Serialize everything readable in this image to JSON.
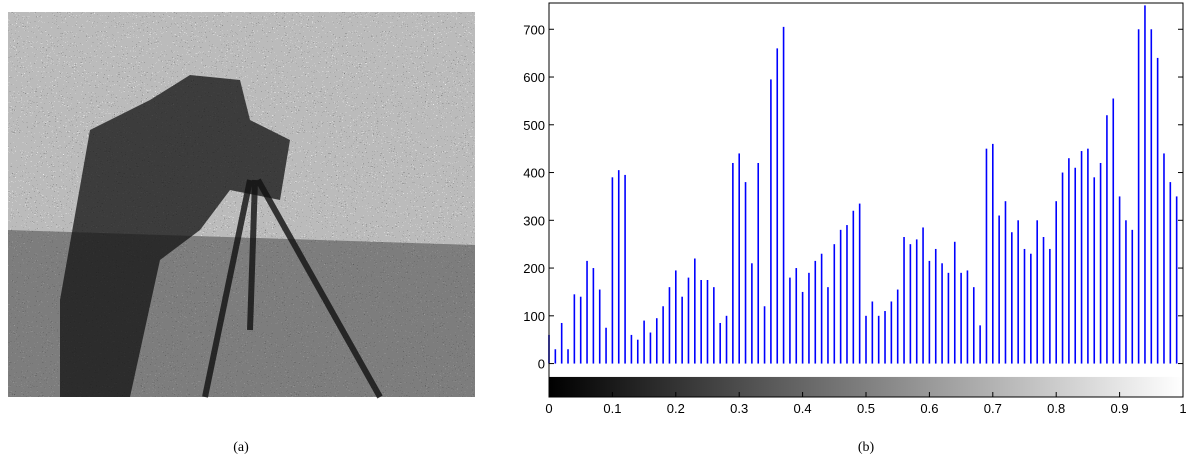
{
  "chart_data": {
    "type": "bar",
    "captions": [
      "(a)",
      "(b)"
    ],
    "x": [
      0.0,
      0.01,
      0.02,
      0.03,
      0.04,
      0.05,
      0.06,
      0.07,
      0.08,
      0.09,
      0.1,
      0.11,
      0.12,
      0.13,
      0.14,
      0.15,
      0.16,
      0.17,
      0.18,
      0.19,
      0.2,
      0.21,
      0.22,
      0.23,
      0.24,
      0.25,
      0.26,
      0.27,
      0.28,
      0.29,
      0.3,
      0.31,
      0.32,
      0.33,
      0.34,
      0.35,
      0.36,
      0.37,
      0.38,
      0.39,
      0.4,
      0.41,
      0.42,
      0.43,
      0.44,
      0.45,
      0.46,
      0.47,
      0.48,
      0.49,
      0.5,
      0.51,
      0.52,
      0.53,
      0.54,
      0.55,
      0.56,
      0.57,
      0.58,
      0.59,
      0.6,
      0.61,
      0.62,
      0.63,
      0.64,
      0.65,
      0.66,
      0.67,
      0.68,
      0.69,
      0.7,
      0.71,
      0.72,
      0.73,
      0.74,
      0.75,
      0.76,
      0.77,
      0.78,
      0.79,
      0.8,
      0.81,
      0.82,
      0.83,
      0.84,
      0.85,
      0.86,
      0.87,
      0.88,
      0.89,
      0.9,
      0.91,
      0.92,
      0.93,
      0.94,
      0.95,
      0.96,
      0.97,
      0.98,
      0.99
    ],
    "values": [
      60,
      30,
      85,
      30,
      145,
      140,
      215,
      200,
      155,
      75,
      390,
      405,
      395,
      60,
      50,
      90,
      65,
      95,
      120,
      160,
      195,
      140,
      180,
      220,
      175,
      175,
      160,
      85,
      100,
      420,
      440,
      380,
      210,
      420,
      120,
      595,
      660,
      705,
      180,
      200,
      150,
      190,
      215,
      230,
      160,
      250,
      280,
      290,
      320,
      335,
      100,
      130,
      100,
      110,
      130,
      155,
      265,
      250,
      260,
      285,
      215,
      240,
      210,
      190,
      255,
      190,
      195,
      160,
      80,
      450,
      460,
      310,
      340,
      275,
      300,
      240,
      230,
      300,
      265,
      240,
      340,
      400,
      430,
      410,
      445,
      450,
      390,
      420,
      520,
      555,
      350,
      300,
      280,
      700,
      750,
      700,
      640,
      440,
      380,
      350
    ],
    "color": "#0000ff",
    "xlim": [
      0,
      1
    ],
    "xticks": [
      0,
      0.1,
      0.2,
      0.3,
      0.4,
      0.5,
      0.6,
      0.7,
      0.8,
      0.9,
      1
    ],
    "ylim": [
      -70,
      755
    ],
    "yticks": [
      0,
      100,
      200,
      300,
      400,
      500,
      600,
      700
    ]
  }
}
